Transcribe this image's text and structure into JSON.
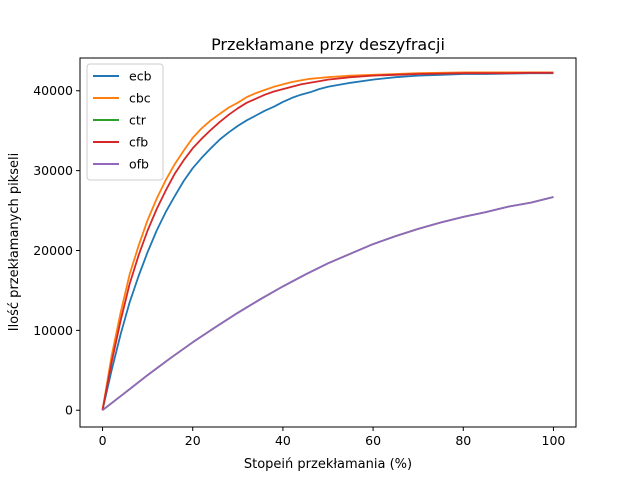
{
  "chart_data": {
    "type": "line",
    "title": "Przekłamane przy deszyfracji",
    "xlabel": "Stopeiń przekłamania (%)",
    "ylabel": "Ilość przekłamanych pikseli",
    "xlim": [
      -5,
      105
    ],
    "ylim": [
      -2100,
      44100
    ],
    "xticks": [
      0,
      20,
      40,
      60,
      80,
      100
    ],
    "yticks": [
      0,
      10000,
      20000,
      30000,
      40000
    ],
    "grid": false,
    "legend_position": "top-left",
    "series": [
      {
        "name": "ecb",
        "color": "#1f77b4",
        "x": [
          0,
          2,
          4,
          6,
          8,
          10,
          12,
          14,
          16,
          18,
          20,
          22,
          24,
          26,
          28,
          30,
          32,
          34,
          36,
          38,
          40,
          42,
          44,
          46,
          48,
          50,
          55,
          60,
          65,
          70,
          75,
          80,
          85,
          90,
          95,
          100
        ],
        "y": [
          0,
          5000,
          9500,
          13500,
          16800,
          19800,
          22500,
          24800,
          26800,
          28700,
          30300,
          31600,
          32800,
          33900,
          34800,
          35600,
          36300,
          36900,
          37500,
          38000,
          38600,
          39100,
          39500,
          39800,
          40200,
          40500,
          41000,
          41400,
          41700,
          41900,
          42000,
          42100,
          42100,
          42150,
          42200,
          42200
        ]
      },
      {
        "name": "cbc",
        "color": "#ff7f0e",
        "x": [
          0,
          2,
          4,
          6,
          8,
          10,
          12,
          14,
          16,
          18,
          20,
          22,
          24,
          26,
          28,
          30,
          32,
          34,
          36,
          38,
          40,
          42,
          44,
          46,
          48,
          50,
          55,
          60,
          65,
          70,
          75,
          80,
          85,
          90,
          95,
          100
        ],
        "y": [
          0,
          6800,
          12200,
          17000,
          20600,
          23800,
          26500,
          28800,
          30800,
          32500,
          34100,
          35300,
          36300,
          37100,
          37900,
          38500,
          39200,
          39700,
          40100,
          40500,
          40800,
          41100,
          41300,
          41500,
          41600,
          41700,
          41900,
          42000,
          42100,
          42200,
          42250,
          42300,
          42300,
          42300,
          42300,
          42300
        ]
      },
      {
        "name": "ctr",
        "color": "#2ca02c",
        "x": [
          0,
          5,
          10,
          15,
          20,
          25,
          30,
          35,
          40,
          45,
          50,
          55,
          60,
          65,
          70,
          75,
          80,
          85,
          90,
          95,
          100
        ],
        "y": [
          0,
          2200,
          4400,
          6500,
          8500,
          10400,
          12200,
          13900,
          15500,
          17000,
          18400,
          19600,
          20800,
          21800,
          22700,
          23500,
          24200,
          24800,
          25500,
          26000,
          26700
        ]
      },
      {
        "name": "cfb",
        "color": "#d62728",
        "x": [
          0,
          2,
          4,
          6,
          8,
          10,
          12,
          14,
          16,
          18,
          20,
          22,
          24,
          26,
          28,
          30,
          32,
          34,
          36,
          38,
          40,
          42,
          44,
          46,
          48,
          50,
          55,
          60,
          65,
          70,
          75,
          80,
          85,
          90,
          95,
          100
        ],
        "y": [
          0,
          6000,
          11200,
          15800,
          19400,
          22500,
          25200,
          27500,
          29600,
          31300,
          32800,
          34000,
          35100,
          36100,
          37000,
          37800,
          38500,
          39000,
          39500,
          39900,
          40200,
          40500,
          40800,
          41000,
          41200,
          41400,
          41700,
          41900,
          42000,
          42100,
          42150,
          42200,
          42200,
          42200,
          42250,
          42250
        ]
      },
      {
        "name": "ofb",
        "color": "#9467bd",
        "x": [
          0,
          5,
          10,
          15,
          20,
          25,
          30,
          35,
          40,
          45,
          50,
          55,
          60,
          65,
          70,
          75,
          80,
          85,
          90,
          95,
          100
        ],
        "y": [
          0,
          2200,
          4400,
          6500,
          8500,
          10400,
          12200,
          13900,
          15500,
          17000,
          18400,
          19600,
          20800,
          21800,
          22700,
          23500,
          24200,
          24800,
          25500,
          26000,
          26700
        ]
      }
    ]
  }
}
